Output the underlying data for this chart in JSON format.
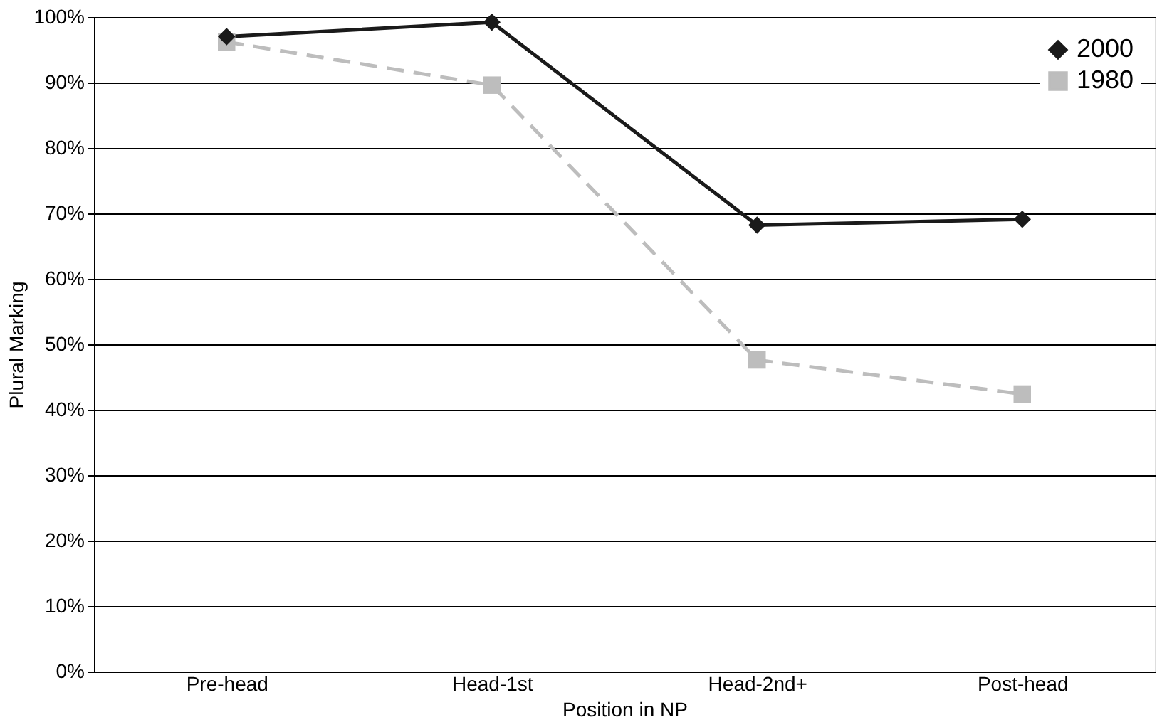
{
  "chart_data": {
    "type": "line",
    "xlabel": "Position in NP",
    "ylabel": "Plural Marking",
    "categories": [
      "Pre-head",
      "Head-1st",
      "Head-2nd+",
      "Post-head"
    ],
    "series": [
      {
        "name": "2000",
        "color": "#1a1a1a",
        "values": [
          97.0,
          99.2,
          68.2,
          69.1
        ],
        "marker": "diamond",
        "line_style": "solid"
      },
      {
        "name": "1980",
        "color": "#bdbdbd",
        "values": [
          96.2,
          89.6,
          47.6,
          42.4
        ],
        "marker": "square",
        "line_style": "dashed"
      }
    ],
    "ylim": [
      0,
      100
    ],
    "yticks": [
      {
        "value": 0,
        "label": "0%"
      },
      {
        "value": 10,
        "label": "10%"
      },
      {
        "value": 20,
        "label": "20%"
      },
      {
        "value": 30,
        "label": "30%"
      },
      {
        "value": 40,
        "label": "40%"
      },
      {
        "value": 50,
        "label": "50%"
      },
      {
        "value": 60,
        "label": "60%"
      },
      {
        "value": 70,
        "label": "70%"
      },
      {
        "value": 80,
        "label": "80%"
      },
      {
        "value": 90,
        "label": "90%"
      },
      {
        "value": 100,
        "label": "100%"
      }
    ],
    "grid": "y",
    "legend": "top right"
  }
}
